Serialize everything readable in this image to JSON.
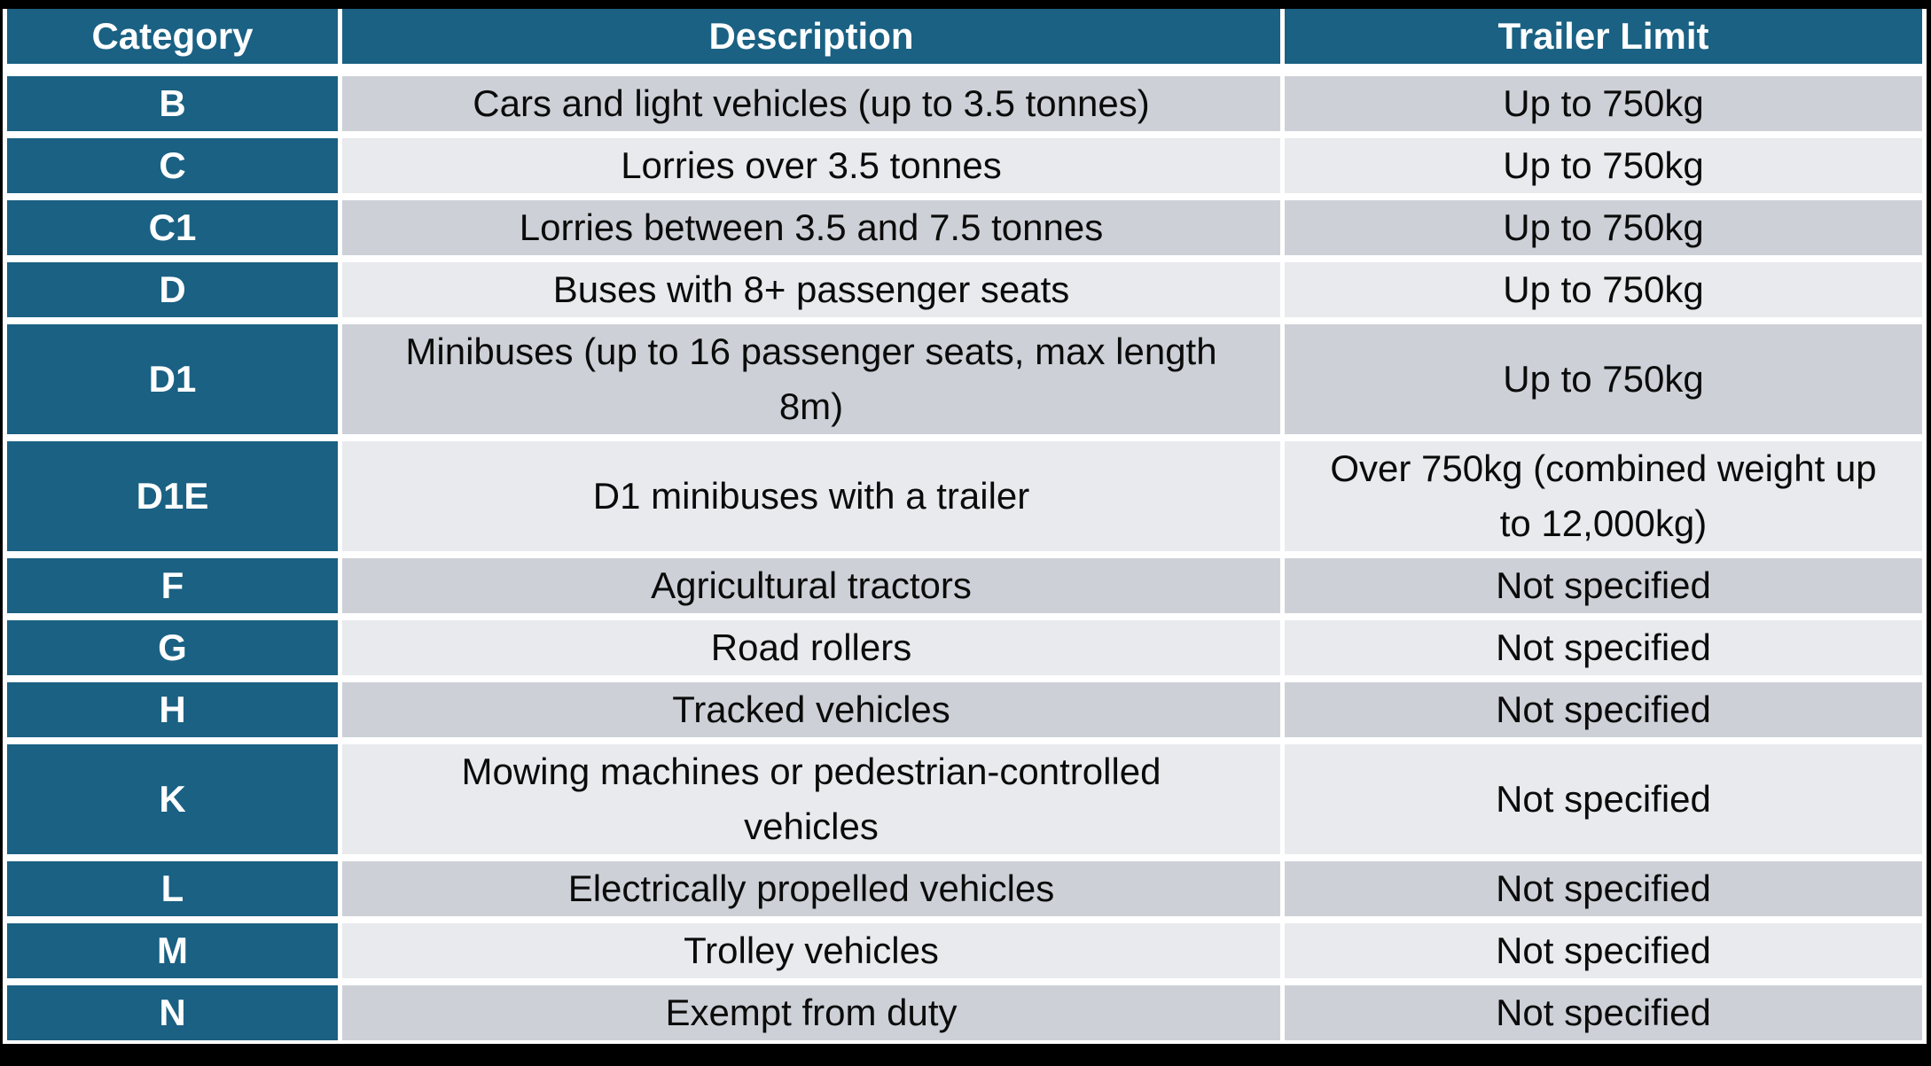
{
  "colors": {
    "header_bg": "#1A6183",
    "category_bg": "#1A6183",
    "row_dark": "#CDD1D7",
    "row_light": "#E8EAED",
    "gridline": "#FFFFFF",
    "header_text": "#FFFFFF",
    "body_text": "#0B0B0B",
    "page_bg": "#000000"
  },
  "table": {
    "columns": [
      "Category",
      "Description",
      "Trailer Limit"
    ],
    "rows": [
      {
        "category": "B",
        "description": "Cars and light vehicles (up to 3.5 tonnes)",
        "trailer_limit": "Up to 750kg"
      },
      {
        "category": "C",
        "description": "Lorries over 3.5 tonnes",
        "trailer_limit": "Up to 750kg"
      },
      {
        "category": "C1",
        "description": "Lorries between 3.5 and 7.5 tonnes",
        "trailer_limit": "Up to 750kg"
      },
      {
        "category": "D",
        "description": "Buses with 8+ passenger seats",
        "trailer_limit": "Up to 750kg"
      },
      {
        "category": "D1",
        "description": "Minibuses (up to 16 passenger seats, max length\n8m)",
        "trailer_limit": "Up to 750kg"
      },
      {
        "category": "D1E",
        "description": "D1 minibuses with a trailer",
        "trailer_limit": "Over 750kg (combined weight up\nto 12,000kg)"
      },
      {
        "category": "F",
        "description": "Agricultural tractors",
        "trailer_limit": "Not specified"
      },
      {
        "category": "G",
        "description": "Road rollers",
        "trailer_limit": "Not specified"
      },
      {
        "category": "H",
        "description": "Tracked vehicles",
        "trailer_limit": "Not specified"
      },
      {
        "category": "K",
        "description": "Mowing machines or pedestrian-controlled\nvehicles",
        "trailer_limit": "Not specified"
      },
      {
        "category": "L",
        "description": "Electrically propelled vehicles",
        "trailer_limit": "Not specified"
      },
      {
        "category": "M",
        "description": "Trolley vehicles",
        "trailer_limit": "Not specified"
      },
      {
        "category": "N",
        "description": "Exempt from duty",
        "trailer_limit": "Not specified"
      }
    ]
  }
}
